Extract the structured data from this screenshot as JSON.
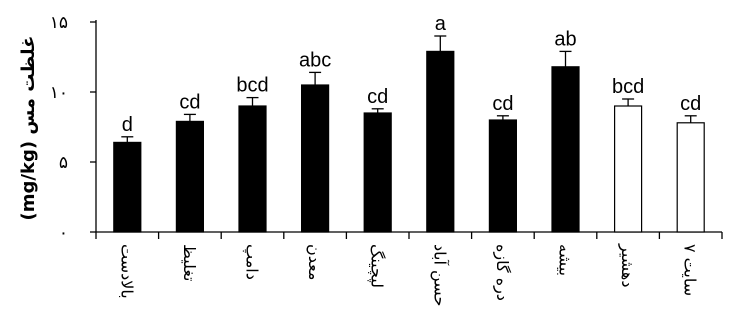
{
  "chart_data": {
    "type": "bar",
    "ylabel": "(mg/kg) غلظت مس",
    "ylim": [
      0,
      15
    ],
    "y_ticks": [
      {
        "value": 0,
        "label": "۰"
      },
      {
        "value": 5,
        "label": "۵"
      },
      {
        "value": 10,
        "label": "۱۰"
      },
      {
        "value": 15,
        "label": "۱۵"
      }
    ],
    "categories": [
      "بالادست",
      "تغلیظ",
      "دامپ",
      "معدن",
      "لپچینگ",
      "حسن آباد",
      "دره گازه",
      "بیشه",
      "دهشیر",
      "سایت ۷"
    ],
    "values": [
      6.4,
      7.9,
      9.0,
      10.5,
      8.5,
      12.9,
      8.0,
      11.8,
      9.0,
      7.8
    ],
    "errors": [
      0.4,
      0.5,
      0.6,
      0.9,
      0.3,
      1.1,
      0.3,
      1.1,
      0.5,
      0.5
    ],
    "significance": [
      "d",
      "cd",
      "bcd",
      "abc",
      "cd",
      "a",
      "cd",
      "ab",
      "bcd",
      "cd"
    ],
    "fills": [
      "#000000",
      "#000000",
      "#000000",
      "#000000",
      "#000000",
      "#000000",
      "#000000",
      "#000000",
      "#ffffff",
      "#ffffff"
    ]
  }
}
